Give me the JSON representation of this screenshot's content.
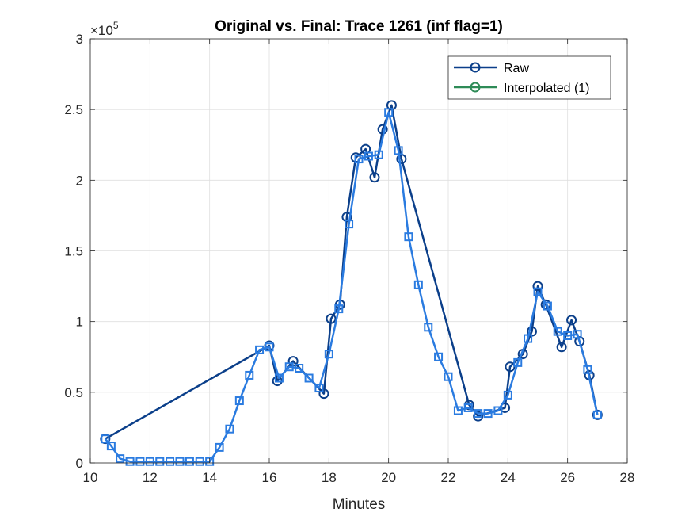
{
  "chart_data": {
    "type": "line",
    "title": "Original vs. Final: Trace 1261 (inf flag=1)",
    "xlabel": "Minutes",
    "ylabel": "",
    "xlim": [
      10,
      28
    ],
    "ylim": [
      0,
      300000
    ],
    "x_ticks": [
      "10",
      "12",
      "14",
      "16",
      "18",
      "20",
      "22",
      "24",
      "26",
      "28"
    ],
    "y_ticks": [
      "0",
      "0.5",
      "1",
      "1.5",
      "2",
      "2.5",
      "3"
    ],
    "y_exponent_base": "×10",
    "y_exponent_power": "5",
    "grid": true,
    "legend_position": "top-right",
    "series": [
      {
        "name": "Raw",
        "color": "#0b3f8a",
        "marker": "circle",
        "x": [
          10.5,
          16.0,
          16.27,
          16.8,
          17.83,
          18.07,
          18.37,
          18.6,
          18.9,
          19.23,
          19.53,
          19.8,
          20.1,
          20.43,
          22.7,
          23.0,
          23.9,
          24.07,
          24.5,
          24.8,
          25.0,
          25.27,
          25.8,
          26.13,
          26.4,
          26.73,
          27.0
        ],
        "y": [
          17000,
          83000,
          58000,
          72000,
          49000,
          102000,
          112000,
          174000,
          216000,
          222000,
          202000,
          236000,
          253000,
          215000,
          41000,
          33000,
          39000,
          68000,
          77000,
          93000,
          125000,
          112000,
          82000,
          101000,
          86000,
          62000,
          34000
        ]
      },
      {
        "name": "Interpolated (1)",
        "color": "#2e8b57",
        "marker": "circle",
        "x": [],
        "y": []
      },
      {
        "name": "",
        "color": "#2a7be0",
        "marker": "square",
        "x": [
          10.5,
          10.7,
          11.0,
          11.33,
          11.67,
          12.0,
          12.33,
          12.67,
          13.0,
          13.33,
          13.67,
          14.0,
          14.33,
          14.67,
          15.0,
          15.33,
          15.67,
          16.0,
          16.33,
          16.67,
          17.0,
          17.33,
          17.67,
          18.0,
          18.33,
          18.67,
          19.0,
          19.33,
          19.67,
          20.0,
          20.33,
          20.67,
          21.0,
          21.33,
          21.67,
          22.0,
          22.33,
          22.67,
          23.0,
          23.33,
          23.67,
          24.0,
          24.33,
          24.67,
          25.0,
          25.33,
          25.67,
          26.0,
          26.33,
          26.67,
          27.0
        ],
        "y": [
          17000,
          12000,
          3000,
          1000,
          1000,
          1000,
          1000,
          1000,
          1000,
          1000,
          1000,
          1000,
          11000,
          24000,
          44000,
          62000,
          80000,
          82000,
          60000,
          68000,
          67000,
          60000,
          53000,
          77000,
          109000,
          169000,
          215000,
          217000,
          218000,
          248000,
          221000,
          160000,
          126000,
          96000,
          75000,
          61000,
          37000,
          39000,
          35000,
          35000,
          37000,
          48000,
          71000,
          88000,
          121000,
          111000,
          93000,
          90000,
          91000,
          66000,
          34000
        ]
      }
    ]
  }
}
